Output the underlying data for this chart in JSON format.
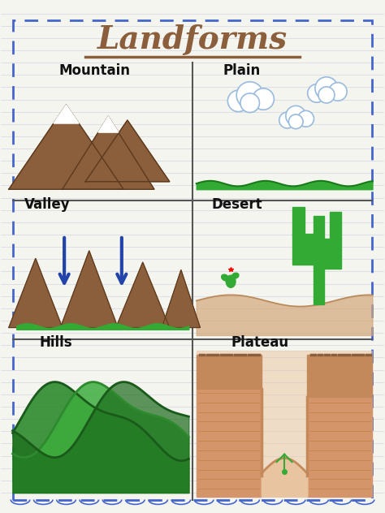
{
  "title": "Landforms",
  "title_color": "#8B5E3C",
  "bg_color": "#F5F5F0",
  "line_color": "#AAAAAA",
  "border_color": "#4466CC",
  "sections": [
    "Mountain",
    "Plain",
    "Valley",
    "Desert",
    "Hills",
    "Plateau"
  ],
  "mountain_color": "#8B5E3C",
  "grass_color": "#33AA33",
  "cloud_color": "#99BBDD",
  "arrow_color": "#2244AA",
  "cactus_color": "#33AA33",
  "desert_sand": "#D2A679",
  "plateau_color": "#C4895A",
  "hill_green": "#2D8A2D",
  "snow_color": "#FFFFFF"
}
